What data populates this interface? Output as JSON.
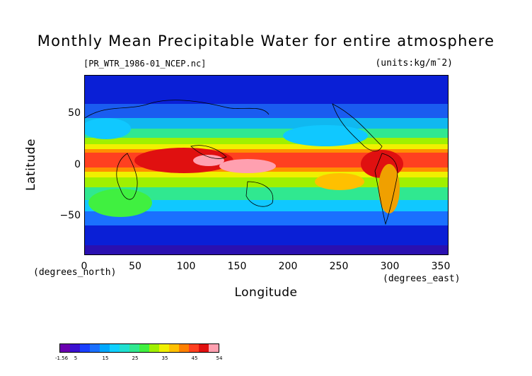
{
  "title": "Monthly Mean Precipitable Water for entire atmosphere",
  "file_label": "[PR_WTR_1986-01_NCEP.nc]",
  "units_label": "(units:kg/m¯2)",
  "map": {
    "type": "heatmap",
    "xlabel": "Longitude",
    "ylabel": "Latitude",
    "x_units": "(degrees_east)",
    "y_units": "(degrees_north)",
    "xlim": [
      0,
      357.5
    ],
    "ylim": [
      -90,
      90
    ],
    "x_ticks": [
      "0",
      "50",
      "100",
      "150",
      "200",
      "250",
      "300",
      "350"
    ],
    "y_ticks": [
      "50",
      "0",
      "−50"
    ]
  },
  "colorbar": {
    "labels": [
      "-1.56",
      "5",
      "15",
      "25",
      "35",
      "45",
      "54"
    ],
    "colors": [
      "#6a00b0",
      "#3a10d0",
      "#1a40ff",
      "#1a70ff",
      "#00a8ff",
      "#10d0ff",
      "#20e0d0",
      "#30e890",
      "#40f040",
      "#a0f000",
      "#f0f000",
      "#ffc000",
      "#ff8000",
      "#ff4020",
      "#e01010",
      "#ffa0b0"
    ]
  }
}
